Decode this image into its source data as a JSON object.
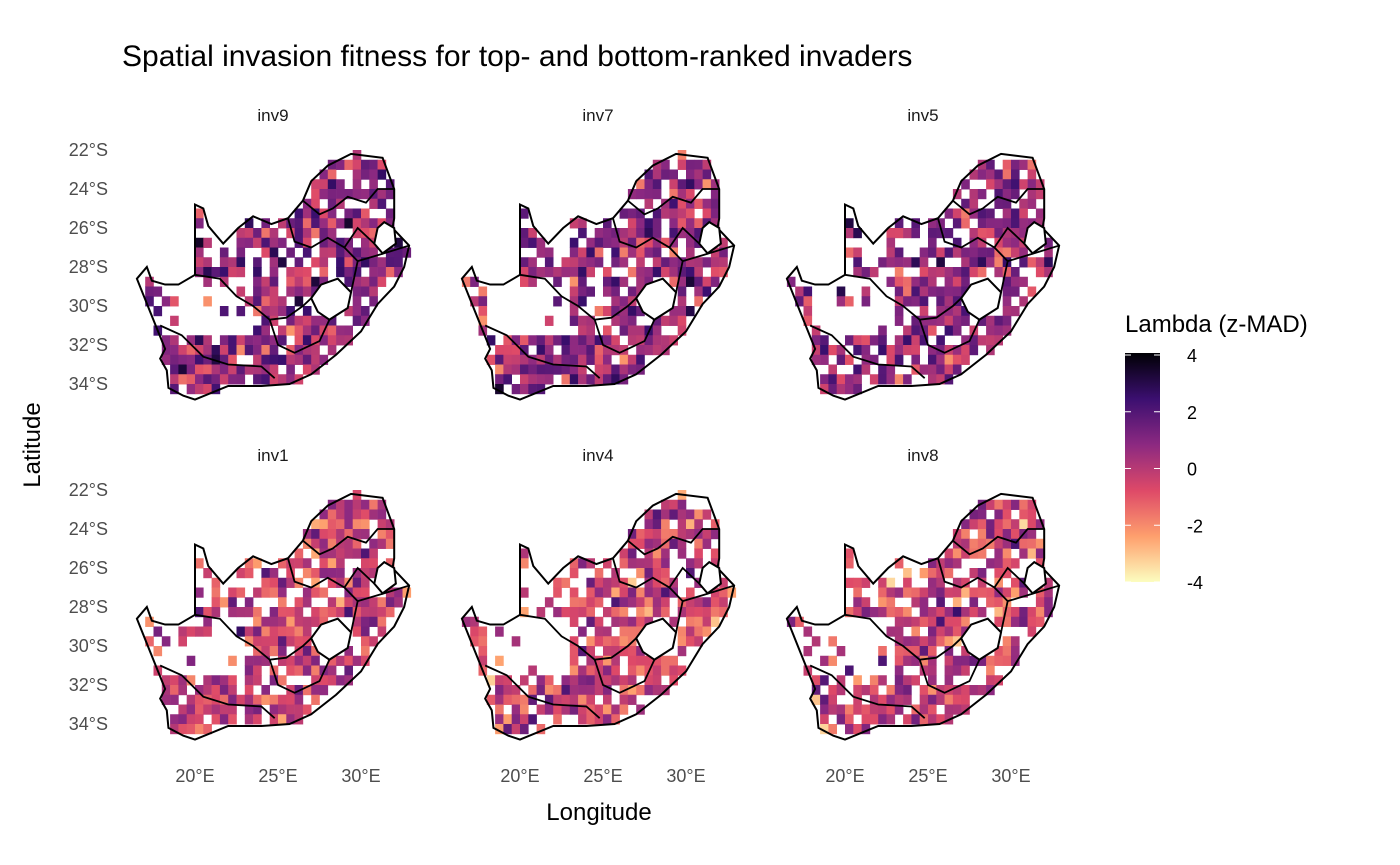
{
  "chart_data": {
    "type": "heatmap",
    "title": "Spatial invasion fitness for top- and bottom-ranked invaders",
    "xlabel": "Longitude",
    "ylabel": "Latitude",
    "facets": [
      "inv9",
      "inv7",
      "inv5",
      "inv1",
      "inv4",
      "inv8"
    ],
    "x_ticks": [
      "20°E",
      "25°E",
      "30°E"
    ],
    "x_tick_values": [
      20,
      25,
      30
    ],
    "y_ticks": [
      "22°S",
      "24°S",
      "26°S",
      "28°S",
      "30°S",
      "32°S",
      "34°S"
    ],
    "y_tick_values": [
      -22,
      -24,
      -26,
      -28,
      -30,
      -32,
      -34
    ],
    "grid": false,
    "legend": {
      "title": "Lambda (z-MAD)",
      "placement": "right",
      "ticks": [
        "4",
        "2",
        "0",
        "-2",
        "-4"
      ],
      "range": [
        -4,
        4
      ],
      "palette": [
        "#fcfdbf",
        "#fe9f6d",
        "#de4968",
        "#8c2981",
        "#3b0f70",
        "#000004"
      ]
    }
  }
}
